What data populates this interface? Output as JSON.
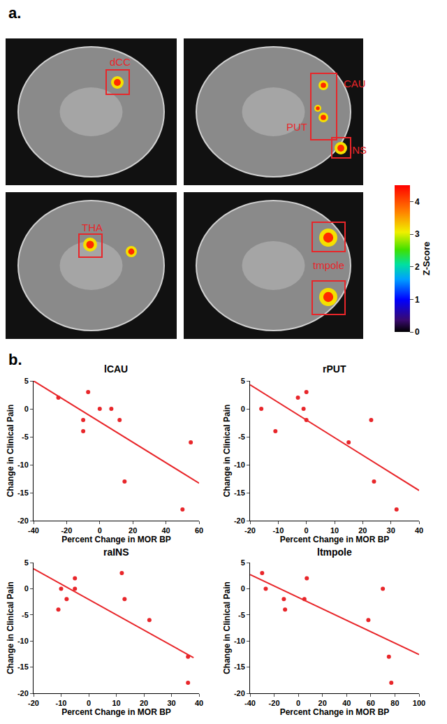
{
  "figure": {
    "panel_labels": [
      "a.",
      "b."
    ],
    "brain_slices": [
      {
        "labels": [
          "dCC"
        ]
      },
      {
        "labels": [
          "CAU",
          "PUT",
          "INS"
        ]
      },
      {
        "labels": [
          "THA"
        ]
      },
      {
        "labels": [
          "tmpole"
        ]
      }
    ],
    "colorbar": {
      "title": "Z-Score",
      "range": [
        0,
        4.5
      ],
      "ticks": [
        0,
        1,
        2,
        3,
        4
      ]
    }
  },
  "chart_data": [
    {
      "type": "scatter",
      "title": "lCAU",
      "x_label": "Percent Change in MOR BP",
      "y_label": "Change in Clinical Pain",
      "xlim": [
        -40,
        60
      ],
      "xticks": [
        -40,
        -20,
        0,
        20,
        40,
        60
      ],
      "ylim": [
        -20,
        5
      ],
      "yticks": [
        -20,
        -15,
        -10,
        -5,
        0,
        5
      ],
      "series": [
        {
          "type": "scatter",
          "marker": "circle",
          "color": "#e8262a",
          "x": [
            -25,
            -10,
            -10,
            -7,
            0,
            7,
            12,
            15,
            50,
            55
          ],
          "values": [
            2,
            -2,
            -4,
            3,
            0,
            0,
            -2,
            -13,
            -18,
            -6
          ]
        },
        {
          "type": "line",
          "color": "#e8262a",
          "x": [
            -40,
            60
          ],
          "values": [
            5,
            -13.3
          ]
        }
      ]
    },
    {
      "type": "scatter",
      "title": "rPUT",
      "x_label": "Percent Change in MOR BP",
      "y_label": "Change in Clinical Pain",
      "xlim": [
        -20,
        40
      ],
      "xticks": [
        -20,
        -10,
        0,
        10,
        20,
        30,
        40
      ],
      "ylim": [
        -20,
        5
      ],
      "yticks": [
        -20,
        -15,
        -10,
        -5,
        0,
        5
      ],
      "series": [
        {
          "type": "scatter",
          "marker": "circle",
          "color": "#e8262a",
          "x": [
            -16,
            -11,
            -3,
            -1,
            0,
            0,
            15,
            23,
            24,
            32
          ],
          "values": [
            0,
            -4,
            2,
            0,
            3,
            -2,
            -6,
            -2,
            -13,
            -18
          ]
        },
        {
          "type": "line",
          "color": "#e8262a",
          "x": [
            -20,
            40
          ],
          "values": [
            4.3,
            -14.6
          ]
        }
      ]
    },
    {
      "type": "scatter",
      "title": "raINS",
      "x_label": "Percent Change in MOR BP",
      "y_label": "Change in Clinical Pain",
      "xlim": [
        -20,
        40
      ],
      "xticks": [
        -20,
        -10,
        0,
        10,
        20,
        30,
        40
      ],
      "ylim": [
        -20,
        5
      ],
      "yticks": [
        -20,
        -15,
        -10,
        -5,
        0,
        5
      ],
      "series": [
        {
          "type": "scatter",
          "marker": "circle",
          "color": "#e8262a",
          "x": [
            -11,
            -10,
            -8,
            -5,
            -5,
            12,
            13,
            22,
            36,
            36
          ],
          "values": [
            -4,
            0,
            -2,
            2,
            0,
            3,
            -2,
            -6,
            -13,
            -18
          ]
        },
        {
          "type": "line",
          "color": "#e8262a",
          "x": [
            -20,
            38
          ],
          "values": [
            3.8,
            -13.2
          ]
        }
      ]
    },
    {
      "type": "scatter",
      "title": "ltmpole",
      "x_label": "Percent Change in MOR BP",
      "y_label": "Change in Clinical Pain",
      "xlim": [
        -40,
        100
      ],
      "xticks": [
        -40,
        -20,
        0,
        20,
        40,
        60,
        80,
        100
      ],
      "ylim": [
        -20,
        5
      ],
      "yticks": [
        -20,
        -15,
        -10,
        -5,
        0,
        5
      ],
      "series": [
        {
          "type": "scatter",
          "marker": "circle",
          "color": "#e8262a",
          "x": [
            -30,
            -27,
            -12,
            -11,
            5,
            7,
            58,
            70,
            75,
            77
          ],
          "values": [
            3,
            0,
            -2,
            -4,
            -2,
            2,
            -6,
            0,
            -13,
            -18
          ]
        },
        {
          "type": "line",
          "color": "#e8262a",
          "x": [
            -40,
            100
          ],
          "values": [
            2.7,
            -12.6
          ]
        }
      ]
    }
  ]
}
